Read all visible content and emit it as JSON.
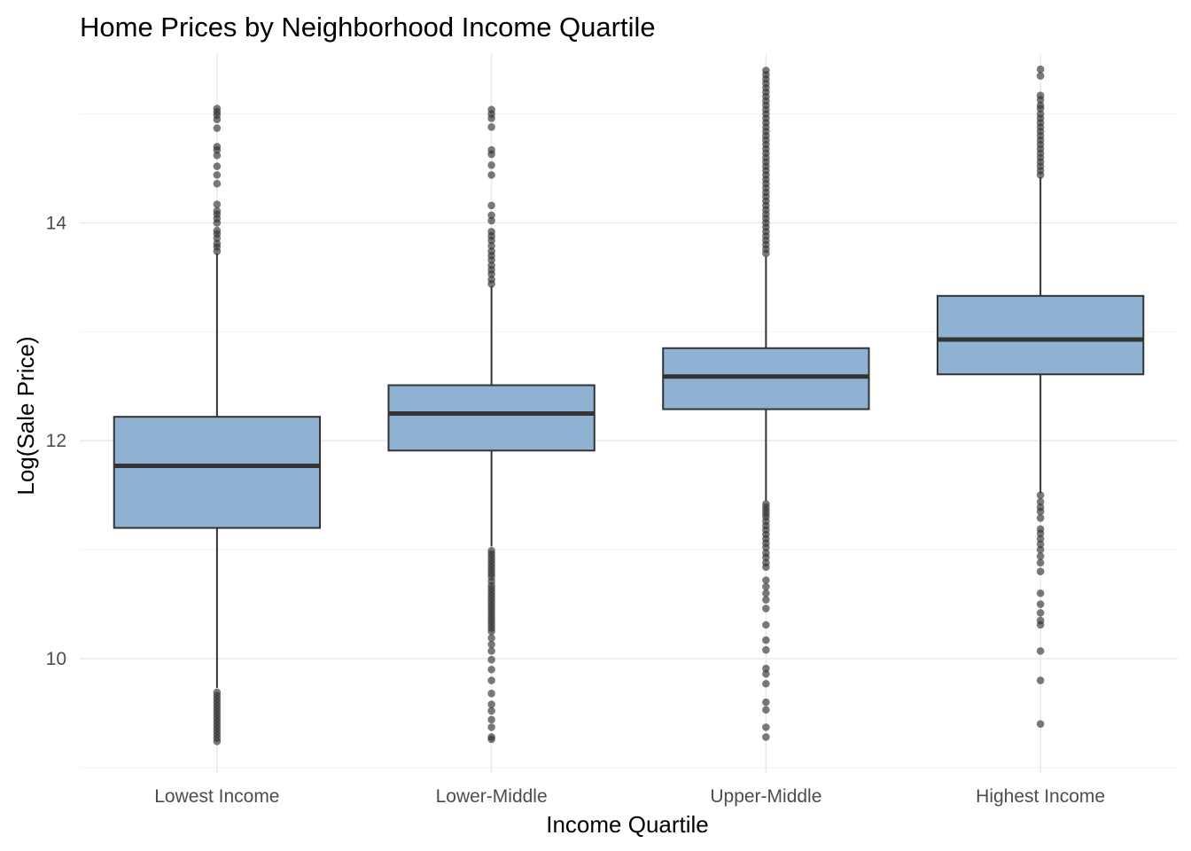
{
  "chart_data": {
    "type": "boxplot",
    "title": "Home Prices by Neighborhood Income Quartile",
    "xlabel": "Income Quartile",
    "ylabel": "Log(Sale Price)",
    "categories": [
      "Lowest Income",
      "Lower-Middle",
      "Upper-Middle",
      "Highest Income"
    ],
    "ylim": [
      8.95,
      15.55
    ],
    "y_ticks": [
      10,
      12,
      14
    ],
    "y_tick_labels": [
      "10",
      "12",
      "14"
    ],
    "grid": true,
    "box_color": "#8FB2D3",
    "outline_color": "#333333",
    "series": [
      {
        "category": "Lowest Income",
        "q1": 11.2,
        "median": 11.77,
        "q3": 12.22,
        "whisker_low": 9.73,
        "whisker_high": 13.72,
        "outliers": [
          9.24,
          9.27,
          9.3,
          9.33,
          9.36,
          9.39,
          9.42,
          9.45,
          9.48,
          9.51,
          9.54,
          9.57,
          9.6,
          9.63,
          9.66,
          9.69,
          13.74,
          13.78,
          13.81,
          13.86,
          13.9,
          13.93,
          14.0,
          14.04,
          14.08,
          14.11,
          14.17,
          14.36,
          14.44,
          14.52,
          14.62,
          14.67,
          14.7,
          14.87,
          14.95,
          14.99,
          15.02,
          15.05
        ]
      },
      {
        "category": "Lower-Middle",
        "q1": 11.91,
        "median": 12.25,
        "q3": 12.51,
        "whisker_low": 11.03,
        "whisker_high": 13.42,
        "outliers": [
          9.26,
          9.28,
          9.37,
          9.44,
          9.52,
          9.58,
          9.68,
          9.8,
          9.9,
          9.99,
          10.07,
          10.13,
          10.19,
          10.25,
          10.28,
          10.31,
          10.34,
          10.37,
          10.4,
          10.43,
          10.46,
          10.49,
          10.52,
          10.55,
          10.58,
          10.61,
          10.64,
          10.67,
          10.71,
          10.75,
          10.78,
          10.81,
          10.84,
          10.87,
          10.9,
          10.93,
          10.96,
          10.99,
          13.44,
          13.48,
          13.53,
          13.57,
          13.61,
          13.66,
          13.7,
          13.74,
          13.79,
          13.84,
          13.88,
          13.92,
          14.02,
          14.07,
          14.16,
          14.44,
          14.53,
          14.63,
          14.67,
          14.88,
          14.96,
          15.0,
          15.04
        ]
      },
      {
        "category": "Upper-Middle",
        "q1": 12.29,
        "median": 12.59,
        "q3": 12.85,
        "whisker_low": 11.45,
        "whisker_high": 13.69,
        "outliers": [
          9.28,
          9.37,
          9.53,
          9.6,
          9.77,
          9.86,
          9.91,
          10.08,
          10.17,
          10.31,
          10.46,
          10.54,
          10.6,
          10.66,
          10.72,
          10.84,
          10.88,
          10.93,
          10.97,
          11.02,
          11.06,
          11.1,
          11.14,
          11.18,
          11.22,
          11.26,
          11.3,
          11.33,
          11.36,
          11.39,
          11.42,
          13.72,
          13.76,
          13.8,
          13.84,
          13.88,
          13.92,
          13.96,
          14.0,
          14.04,
          14.08,
          14.12,
          14.16,
          14.2,
          14.24,
          14.28,
          14.32,
          14.36,
          14.4,
          14.44,
          14.48,
          14.52,
          14.56,
          14.6,
          14.64,
          14.68,
          14.72,
          14.76,
          14.8,
          14.84,
          14.88,
          14.92,
          14.96,
          15.0,
          15.04,
          15.08,
          15.12,
          15.16,
          15.2,
          15.24,
          15.28,
          15.32,
          15.36,
          15.4
        ]
      },
      {
        "category": "Highest Income",
        "q1": 12.61,
        "median": 12.93,
        "q3": 13.33,
        "whisker_low": 11.52,
        "whisker_high": 14.42,
        "outliers": [
          9.4,
          9.8,
          10.07,
          10.31,
          10.35,
          10.42,
          10.5,
          10.6,
          10.8,
          10.88,
          10.94,
          11.0,
          11.05,
          11.1,
          11.15,
          11.19,
          11.29,
          11.35,
          11.39,
          11.44,
          11.5,
          14.44,
          14.48,
          14.52,
          14.56,
          14.6,
          14.64,
          14.68,
          14.72,
          14.76,
          14.8,
          14.84,
          14.88,
          14.92,
          14.96,
          15.0,
          15.05,
          15.08,
          15.13,
          15.17,
          15.35,
          15.41
        ]
      }
    ]
  }
}
